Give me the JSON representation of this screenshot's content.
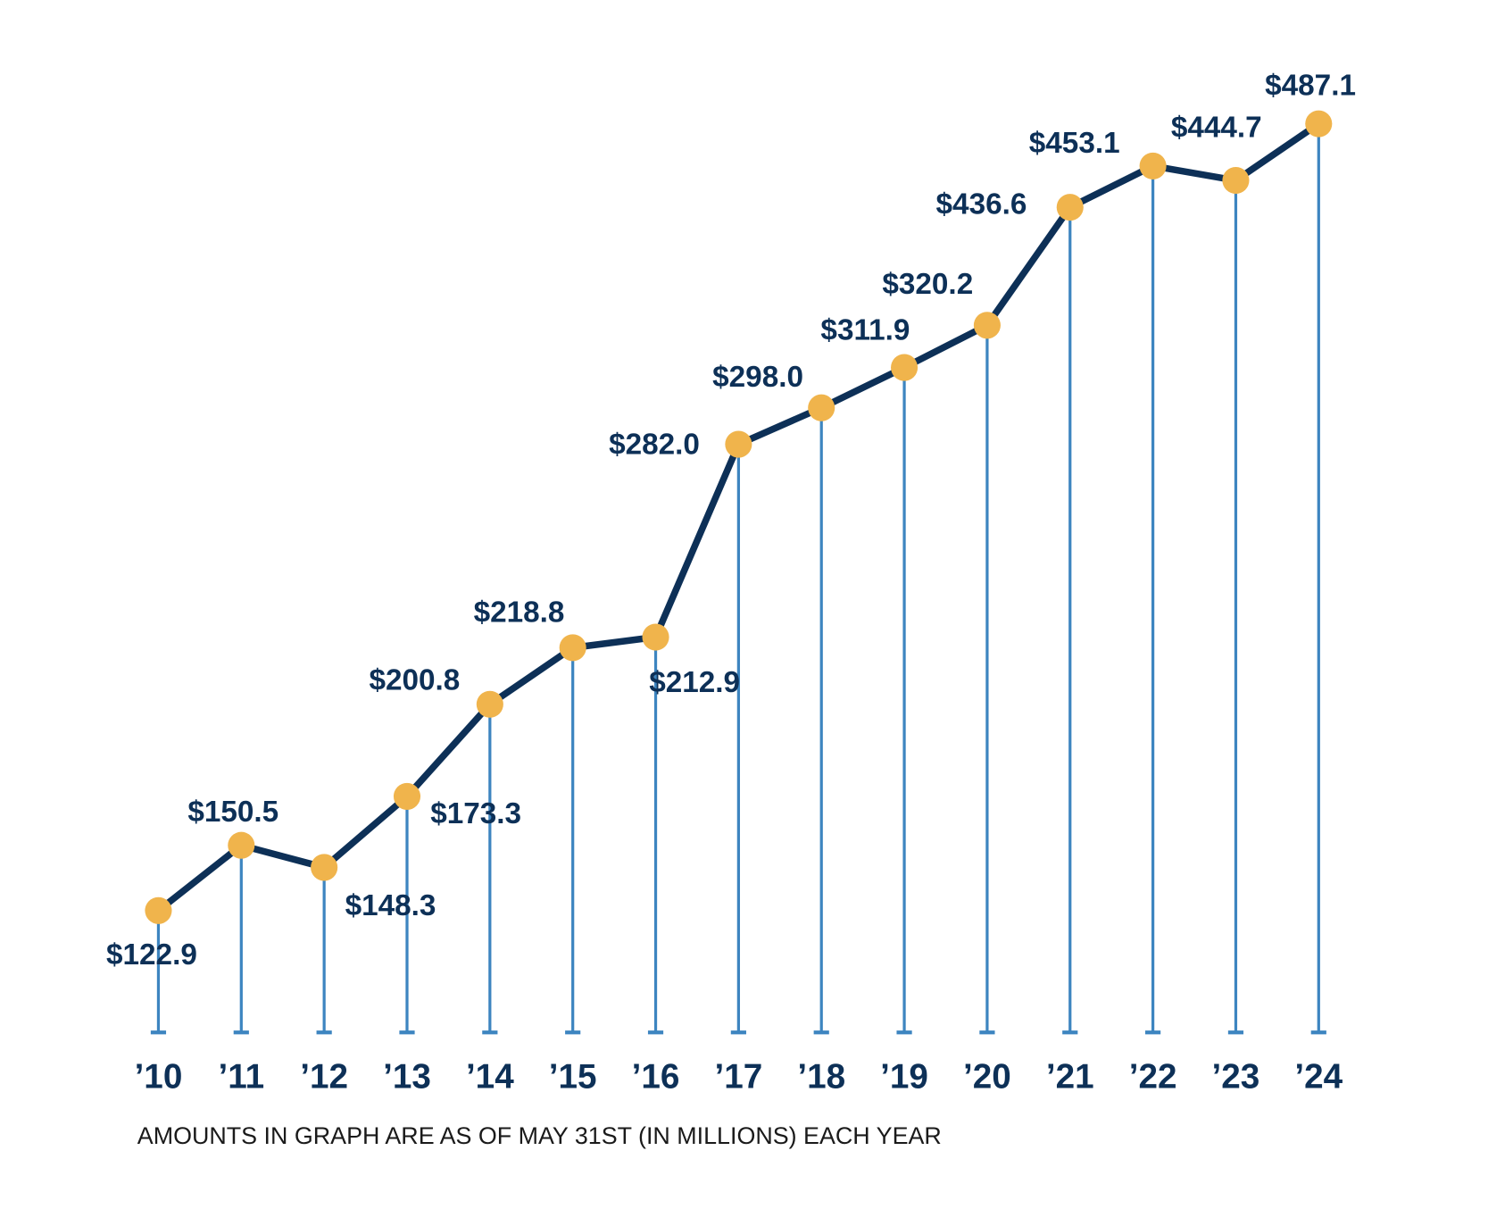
{
  "chart_data": {
    "type": "line",
    "title": "",
    "xlabel": "",
    "ylabel": "",
    "categories": [
      "’10",
      "’11",
      "’12",
      "’13",
      "’14",
      "’15",
      "’16",
      "’17",
      "’18",
      "’19",
      "’20",
      "’21",
      "’22",
      "’23",
      "’24"
    ],
    "values": [
      122.9,
      150.5,
      148.3,
      173.3,
      200.8,
      218.8,
      212.9,
      282.0,
      298.0,
      311.9,
      320.2,
      436.6,
      453.1,
      444.7,
      487.1
    ],
    "data_labels": [
      "$122.9",
      "$150.5",
      "$148.3",
      "$173.3",
      "$200.8",
      "$218.8",
      "$212.9",
      "$282.0",
      "$298.0",
      "$311.9",
      "$320.2",
      "$436.6",
      "$453.1",
      "$444.7",
      "$487.1"
    ],
    "footnote": "AMOUNTS IN GRAPH ARE AS OF MAY 31ST (IN MILLIONS) EACH YEAR",
    "grid": false,
    "legend": "none",
    "colors": {
      "line": "#0d3057",
      "marker": "#f0b44c",
      "drop_line": "#3d85c0",
      "text": "#0d3057"
    }
  }
}
